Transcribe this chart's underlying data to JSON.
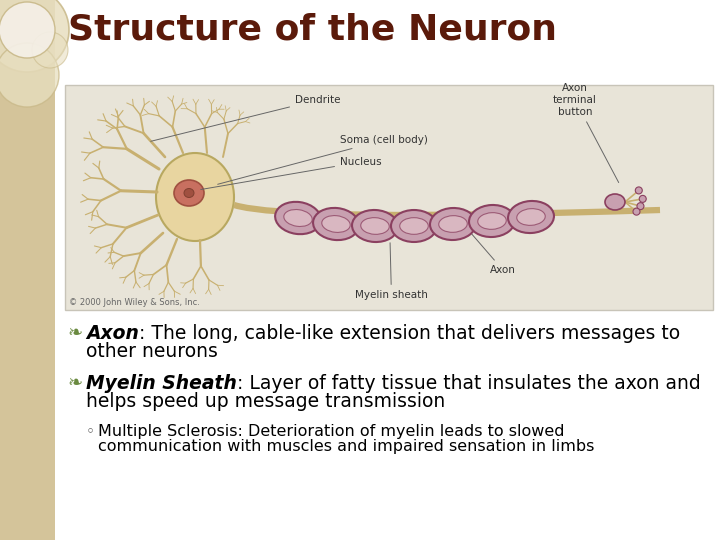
{
  "title": "Structure of the Neuron",
  "title_color": "#5B1A0A",
  "title_fontsize": 26,
  "slide_bg": "#FFFFFF",
  "left_bar_color": "#D4C49A",
  "image_box_color": "#E8E4D8",
  "image_box_border": "#C8C4B8",
  "bullet1_bold": "Axon",
  "bullet1_rest": ": The long, cable-like extension that delivers messages to",
  "bullet1_line2": "other neurons",
  "bullet2_bold": "Myelin Sheath",
  "bullet2_rest": ": Layer of fatty tissue that insulates the axon and",
  "bullet2_line2": "helps speed up message transmission",
  "sub_bullet_line1": "Multiple Sclerosis: Deterioration of myelin leads to slowed",
  "sub_bullet_line2": "communication with muscles and impaired sensation in limbs",
  "bullet_color": "#000000",
  "bullet_fontsize": 13.5,
  "sub_bullet_fontsize": 11.5,
  "copyright": "© 2000 John Wiley & Sons, Inc.",
  "deco_circle1_color": "#D4C49A",
  "deco_circle2_color": "#C8B888",
  "soma_color": "#E8D5A0",
  "soma_edge": "#B8A860",
  "nucleus_color": "#C87060",
  "nucleus_edge": "#A05040",
  "nucleolus_color": "#A05040",
  "dendrite_color": "#C8B070",
  "myelin_face": "#C8A0B0",
  "myelin_edge": "#8B4060",
  "myelin_inner": "#E0C0C8",
  "axon_color": "#C8B070",
  "label_color": "#333333",
  "label_fs": 7.5,
  "arrow_color": "#666666"
}
